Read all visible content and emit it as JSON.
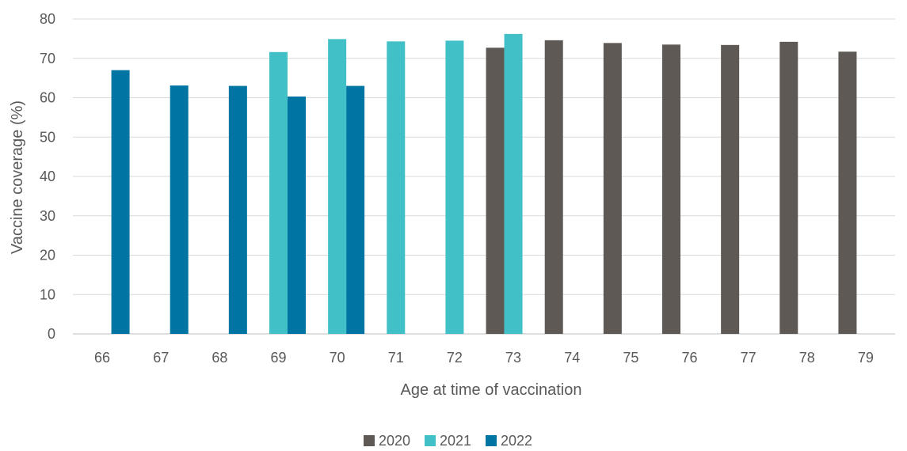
{
  "chart_data": {
    "type": "bar",
    "title": "",
    "xlabel": "Age at time of vaccination",
    "ylabel": "Vaccine coverage (%)",
    "ylim": [
      0,
      80
    ],
    "yticks": [
      0,
      10,
      20,
      30,
      40,
      50,
      60,
      70,
      80
    ],
    "grid": "horizontal",
    "legend_position": "bottom",
    "categories": [
      "66",
      "67",
      "68",
      "69",
      "70",
      "71",
      "72",
      "73",
      "74",
      "75",
      "76",
      "77",
      "78",
      "79"
    ],
    "series": [
      {
        "name": "2020",
        "color": "#5e5955",
        "values": [
          null,
          null,
          null,
          null,
          null,
          null,
          null,
          72.7,
          74.6,
          73.9,
          73.5,
          73.4,
          74.2,
          71.7
        ]
      },
      {
        "name": "2021",
        "color": "#41c0c7",
        "values": [
          null,
          null,
          null,
          71.6,
          74.9,
          74.3,
          74.5,
          76.2,
          null,
          null,
          null,
          null,
          null,
          null
        ]
      },
      {
        "name": "2022",
        "color": "#0074a2",
        "values": [
          67.0,
          63.1,
          63.0,
          60.3,
          63.0,
          null,
          null,
          null,
          null,
          null,
          null,
          null,
          null,
          null
        ]
      }
    ]
  }
}
